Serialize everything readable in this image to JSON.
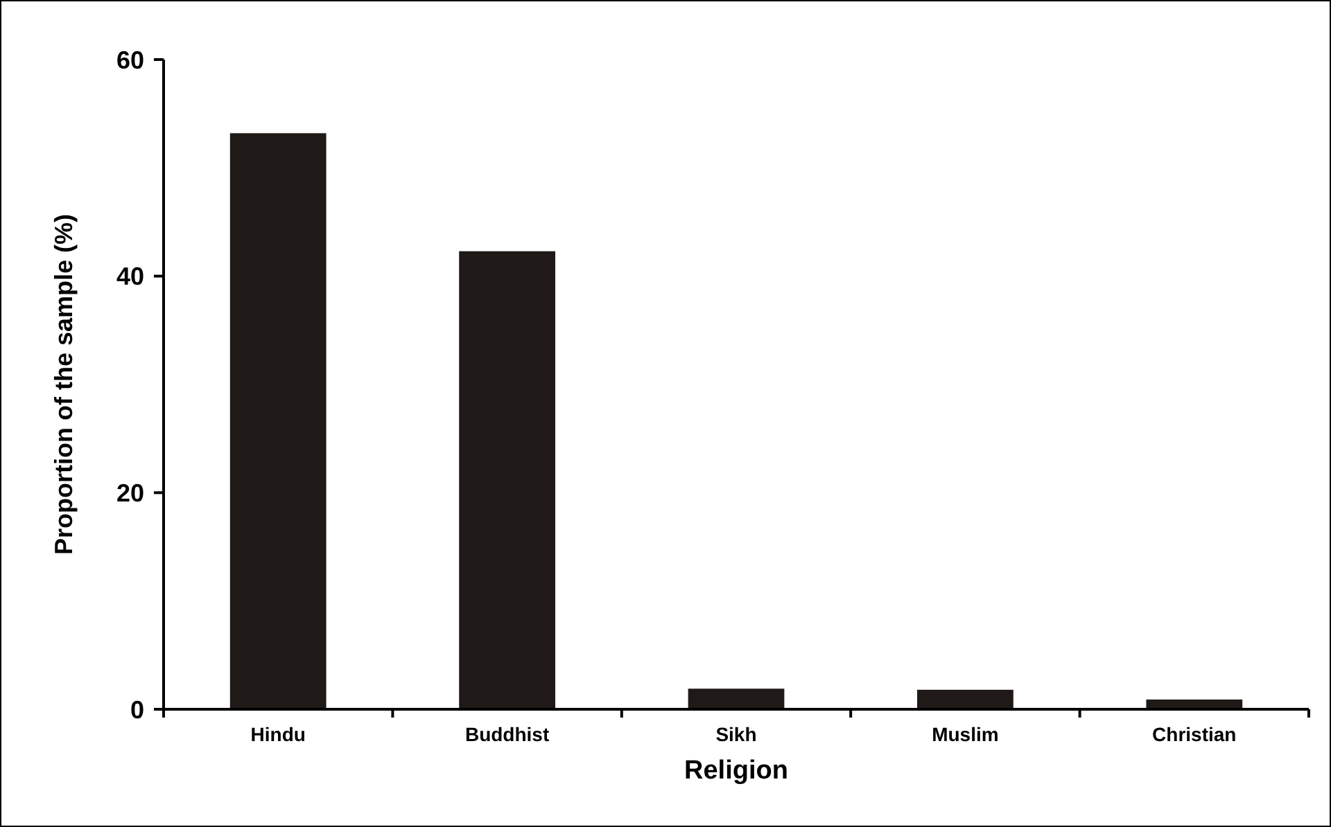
{
  "chart_data": {
    "type": "bar",
    "xlabel": "Religion",
    "ylabel": "Proportion of the sample (%)",
    "categories": [
      "Hindu",
      "Buddhist",
      "Sikh",
      "Muslim",
      "Christian"
    ],
    "values": [
      53.2,
      42.3,
      1.9,
      1.8,
      0.9
    ],
    "color": "#1f1a17",
    "ylim": [
      0,
      60
    ],
    "yticks": [
      0,
      20,
      40,
      60
    ],
    "grid": false
  }
}
